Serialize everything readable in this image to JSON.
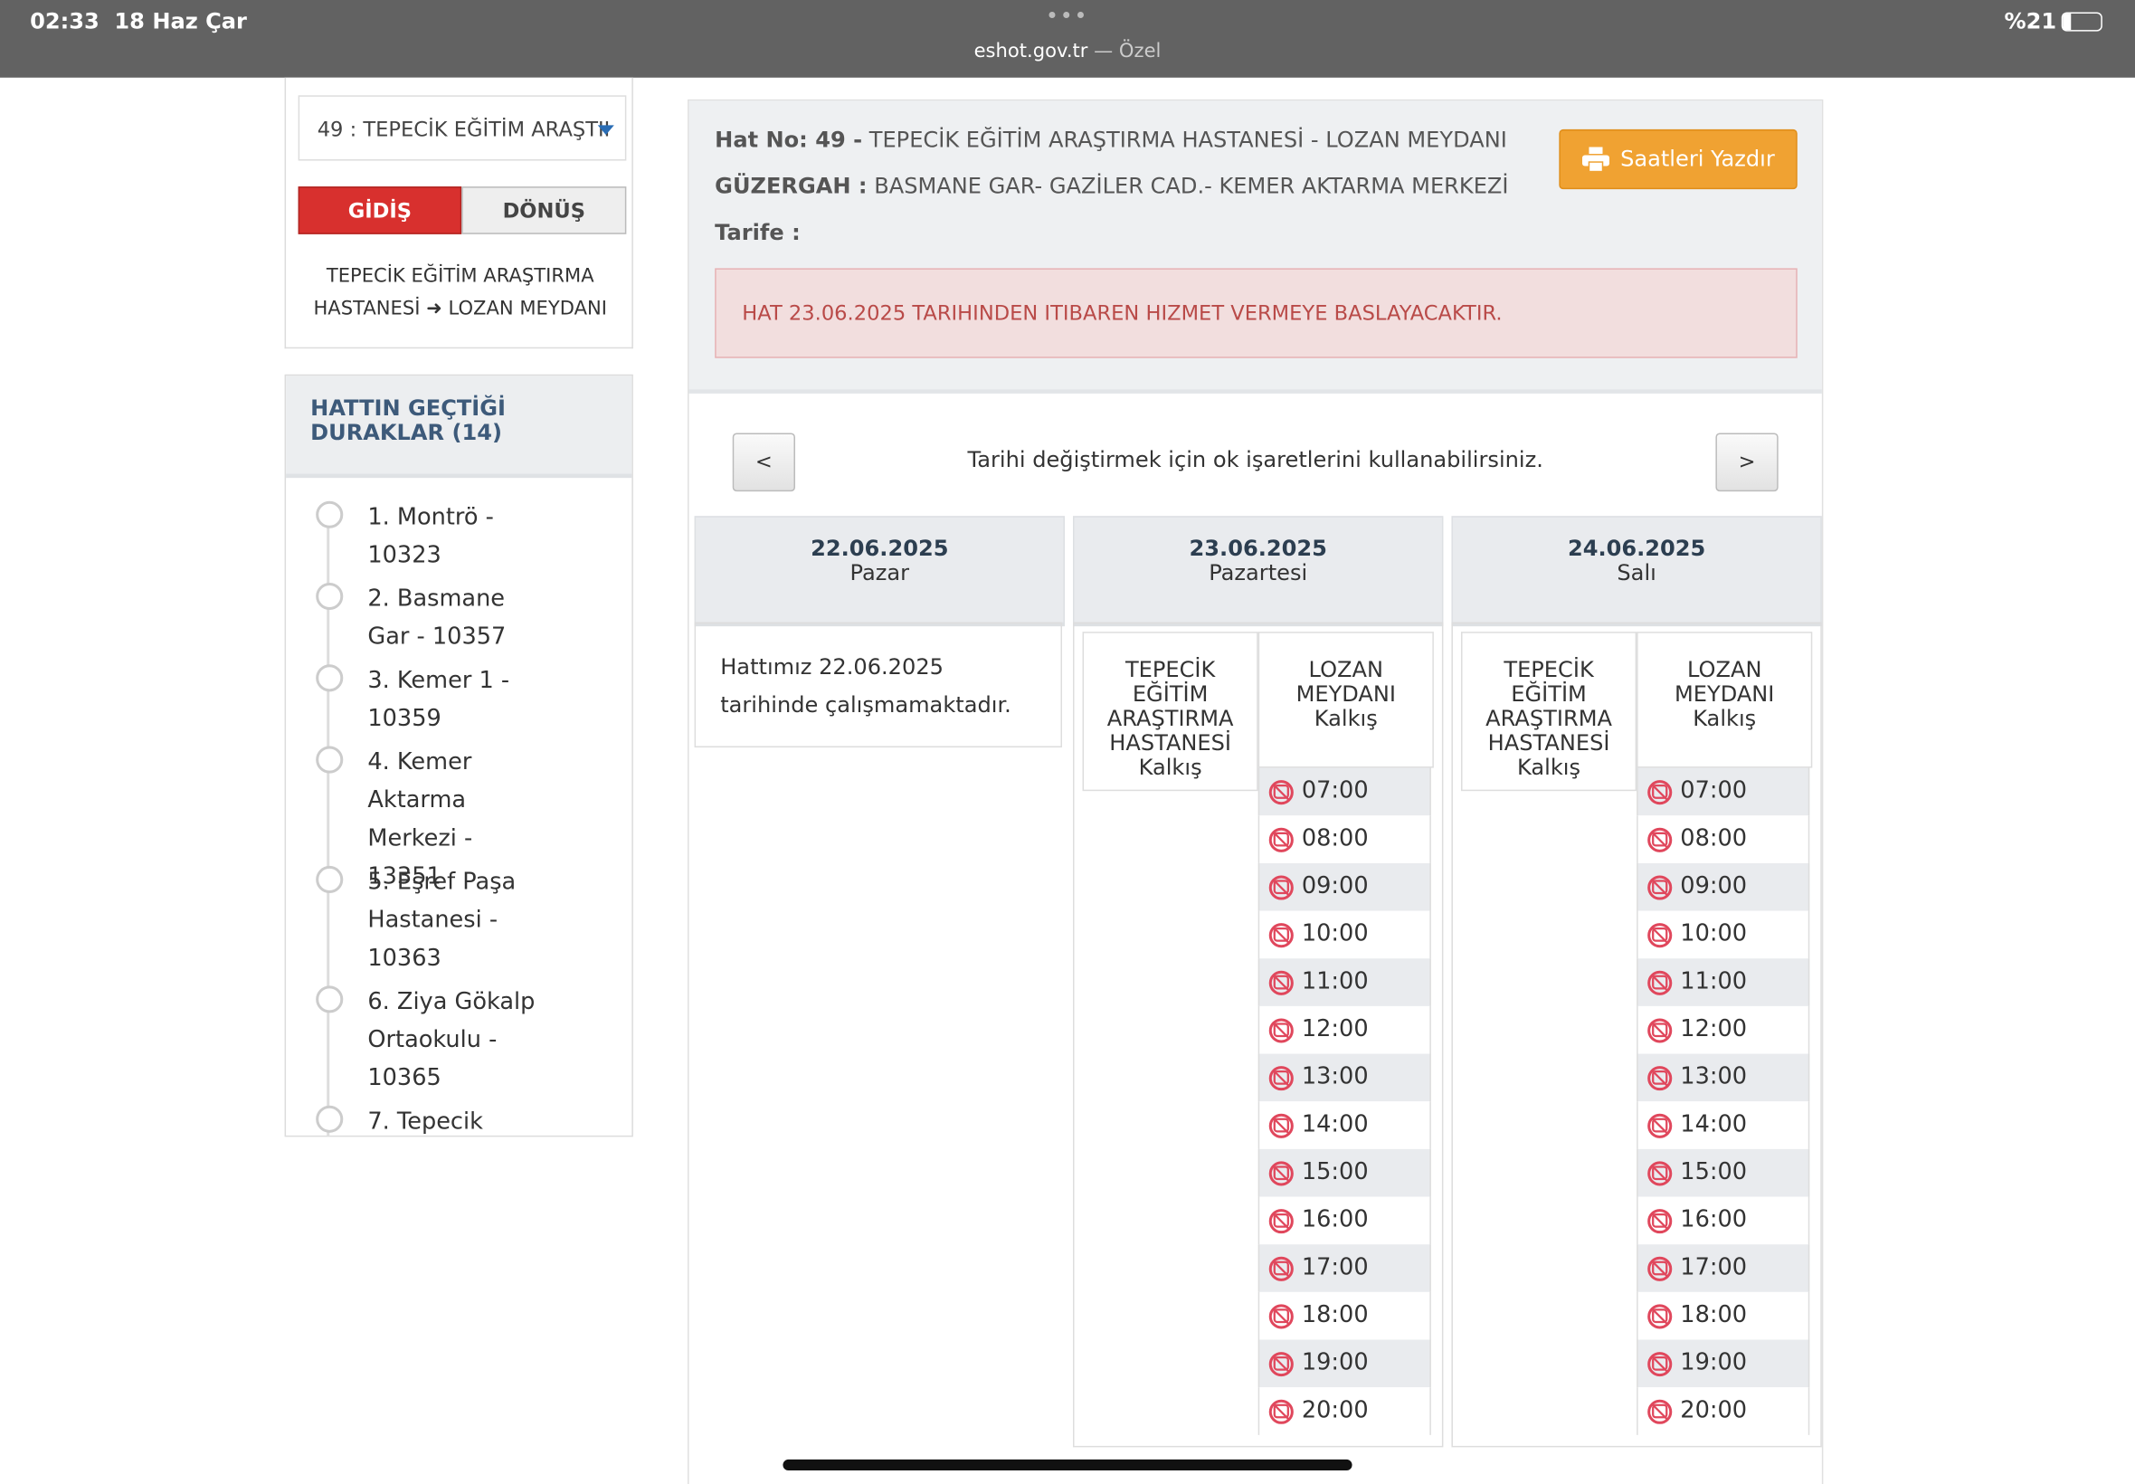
{
  "status_bar": {
    "time": "02:33",
    "date": "18 Haz Çar",
    "url": "eshot.gov.tr",
    "url_suffix": "— Özel",
    "battery": "%21"
  },
  "sidebar": {
    "route_select": "49 : TEPECİK EĞİTİM ARAŞTII",
    "buttons": [
      "GİDİŞ",
      "DÖNÜŞ"
    ],
    "direction_from": "TEPECİK EĞİTİM ARAŞTIRMA HASTANESİ",
    "direction_to": "LOZAN MEYDANI",
    "stops_title": "HATTIN GEÇTİĞİ DURAKLAR (14)",
    "stops": [
      "1. Montrö - 10323",
      "2. Basmane Gar - 10357",
      "3. Kemer 1 - 10359",
      "4. Kemer Aktarma Merkezi - 13351",
      "5. Eşref Paşa Hastanesi - 10363",
      "6. Ziya Gökalp Ortaokulu - 10365",
      "7. Tepecik"
    ]
  },
  "header": {
    "hat_no_label": "Hat No: 49 -",
    "hat_name": "TEPECİK EĞİTİM ARAŞTIRMA HASTANESİ - LOZAN MEYDANI",
    "route_label": "GÜZERGAH :",
    "route": "BASMANE GAR- GAZİLER CAD.- KEMER AKTARMA MERKEZİ",
    "tariff_label": "Tarife :",
    "print_button": "Saatleri Yazdır",
    "alert": "HAT 23.06.2025 TARIHINDEN ITIBAREN HIZMET VERMEYE BASLAYACAKTIR."
  },
  "nav": {
    "prev": "<",
    "next": ">",
    "hint": "Tarihi değiştirmek için ok işaretlerini kullanabilirsiniz."
  },
  "days": [
    {
      "date": "22.06.2025",
      "day": "Pazar",
      "message": "Hattımız 22.06.2025 tarihinde çalışmamaktadır."
    },
    {
      "date": "23.06.2025",
      "day": "Pazartesi",
      "columns": [
        {
          "title": "TEPECİK EĞİTİM ARAŞTIRMA HASTANESİ Kalkış"
        },
        {
          "title": "LOZAN MEYDANI Kalkış",
          "times": [
            "07:00",
            "08:00",
            "09:00",
            "10:00",
            "11:00",
            "12:00",
            "13:00",
            "14:00",
            "15:00",
            "16:00",
            "17:00",
            "18:00",
            "19:00",
            "20:00"
          ]
        }
      ]
    },
    {
      "date": "24.06.2025",
      "day": "Salı",
      "columns": [
        {
          "title": "TEPECİK EĞİTİM ARAŞTIRMA HASTANESİ Kalkış"
        },
        {
          "title": "LOZAN MEYDANI Kalkış",
          "times": [
            "07:00",
            "08:00",
            "09:00",
            "10:00",
            "11:00",
            "12:00",
            "13:00",
            "14:00",
            "15:00",
            "16:00",
            "17:00",
            "18:00",
            "19:00",
            "20:00"
          ]
        }
      ]
    }
  ]
}
